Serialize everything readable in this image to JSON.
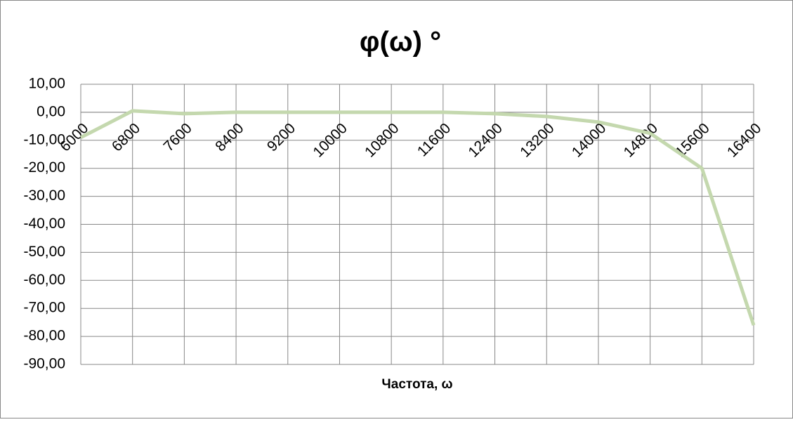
{
  "chart_data": {
    "type": "line",
    "title": "φ(ω) °",
    "x_label": "Частота, ω",
    "categories": [
      "6000",
      "6800",
      "7600",
      "8400",
      "9200",
      "10000",
      "10800",
      "11600",
      "12400",
      "13200",
      "14000",
      "14800",
      "15600",
      "16400"
    ],
    "series": [
      {
        "name": "φ(ω)",
        "color": "#c4d8ae",
        "values": [
          -9,
          0.5,
          -0.5,
          0,
          0,
          0,
          0,
          0,
          -0.5,
          -1.5,
          -3.5,
          -7.5,
          -20,
          -76
        ]
      }
    ],
    "ylim": [
      -90,
      10
    ],
    "yticks": [
      {
        "value": -90,
        "label": "-90,00"
      },
      {
        "value": -80,
        "label": "-80,00"
      },
      {
        "value": -70,
        "label": "-70,00"
      },
      {
        "value": -60,
        "label": "-60,00"
      },
      {
        "value": -50,
        "label": "-50,00"
      },
      {
        "value": -40,
        "label": "-40,00"
      },
      {
        "value": -30,
        "label": "-30,00"
      },
      {
        "value": -20,
        "label": "-20,00"
      },
      {
        "value": -10,
        "label": "-10,00"
      },
      {
        "value": 0,
        "label": "0,00"
      },
      {
        "value": 10,
        "label": "10,00"
      }
    ],
    "grid": true
  }
}
